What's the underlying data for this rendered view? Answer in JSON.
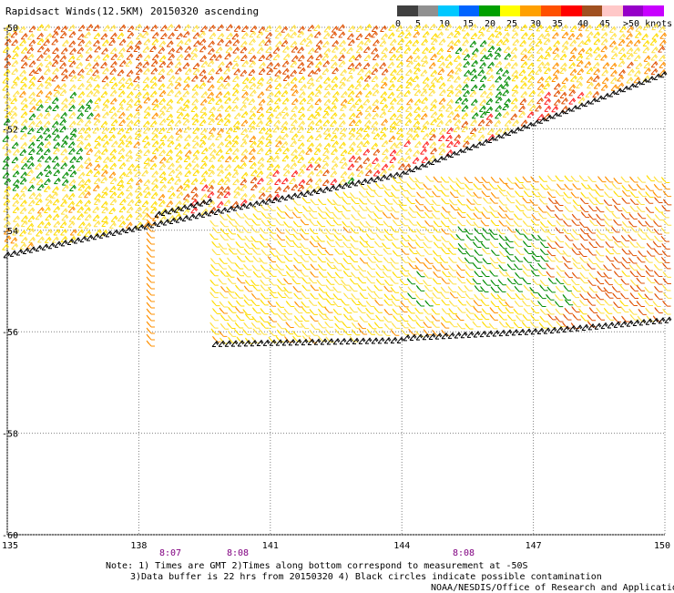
{
  "title": "Rapidsact Winds(12.5KM) 20150320 ascending",
  "legend": {
    "labels": [
      "0",
      "5",
      "10",
      "15",
      "20",
      "25",
      "30",
      "35",
      "40",
      "45",
      ">50 knots"
    ],
    "colors": [
      "#404040",
      "#909090",
      "#00c8ff",
      "#0064ff",
      "#00a000",
      "#ffff00",
      "#ffa000",
      "#ff5000",
      "#ff0000",
      "#a05020",
      "#ffc8c8",
      "#9600c8",
      "#c800ff"
    ]
  },
  "map": {
    "lat_labels": [
      "-50",
      "-52",
      "-54",
      "-56",
      "-58",
      "-60"
    ],
    "lon_labels": [
      "135",
      "138",
      "141",
      "144",
      "147",
      "150"
    ],
    "time_labels": [
      "8:07",
      "8:08",
      "8:08"
    ]
  },
  "notes": {
    "line1": "Note: 1) Times are GMT 2)Times along bottom correspond to measurement at -50S",
    "line2": "3)Data buffer is 22 hrs from 20150320 4) Black circles indicate possible contamination",
    "line3": "NOAA/NESDIS/Office of Research and Applications"
  },
  "colors": {
    "grid": "#808080",
    "time_label": "#800080",
    "wind_black": "#000000",
    "wind_green": "#008c00",
    "wind_yellow": "#ffdc00",
    "wind_lightyellow": "#ffe040",
    "wind_orange": "#ff9000",
    "wind_redorange": "#e05000",
    "wind_red": "#ff2020"
  }
}
